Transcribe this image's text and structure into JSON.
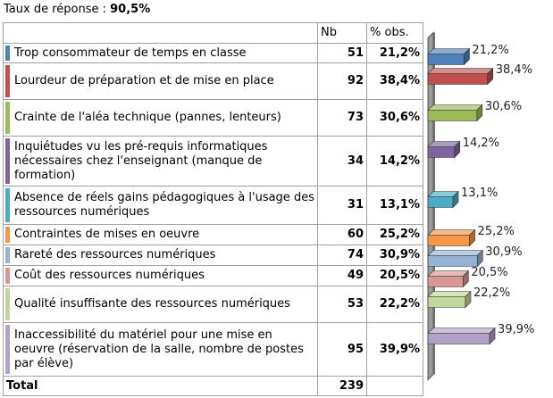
{
  "chart_data": {
    "type": "bar",
    "response_rate": {
      "label": "Taux de réponse :",
      "value": "90,5%"
    },
    "columns": [
      "Nb",
      "% obs."
    ],
    "categories": [
      "Trop consommateur de temps en classe",
      "Lourdeur de préparation et de mise en place",
      "Crainte de l'aléa technique (pannes, lenteurs)",
      "Inquiétudes vu les pré-requis informatiques nécessaires chez l'enseignant (manque de formation)",
      "Absence de réels gains pédagogiques à l'usage des  ressources numériques",
      "Contraintes de mises en oeuvre",
      "Rareté des ressources numériques",
      "Coût des ressources numériques",
      "Qualité insuffisante des ressources numériques",
      "Inaccessibilité du matériel pour une mise en oeuvre (réservation de la salle, nombre de postes par élève)"
    ],
    "counts": [
      51,
      92,
      73,
      34,
      31,
      60,
      74,
      49,
      53,
      95
    ],
    "values": [
      21.2,
      38.4,
      30.6,
      14.2,
      13.1,
      25.2,
      30.9,
      20.5,
      22.2,
      39.9
    ],
    "value_labels": [
      "21,2%",
      "38,4%",
      "30,6%",
      "14,2%",
      "13,1%",
      "25,2%",
      "30,9%",
      "20,5%",
      "22,2%",
      "39,9%"
    ],
    "colors": [
      "#4f81bd",
      "#c0504d",
      "#9bbb59",
      "#8064a2",
      "#4bacc6",
      "#f79646",
      "#95b3d7",
      "#d99694",
      "#c3d69b",
      "#b3a2c7"
    ],
    "total": {
      "label": "Total",
      "value": 239
    }
  }
}
